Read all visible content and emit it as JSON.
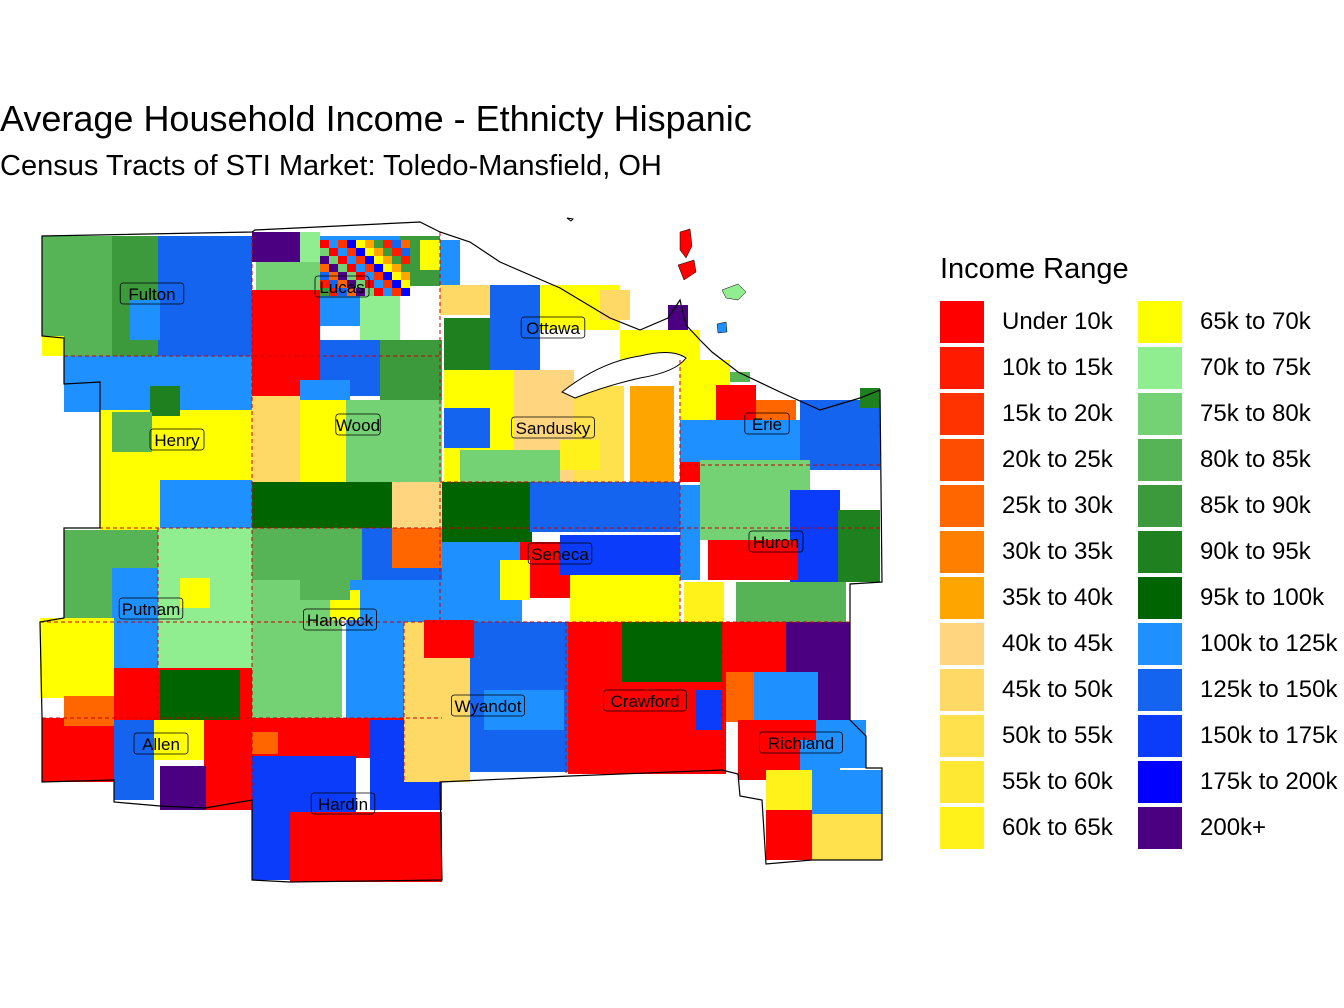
{
  "title": "Average Household Income - Ethnicty Hispanic",
  "subtitle": "Census Tracts of STI Market: Toledo-Mansfield, OH",
  "legend": {
    "title": "Income Range",
    "items": [
      {
        "label": "Under 10k",
        "color": "#FF0000"
      },
      {
        "label": "10k to 15k",
        "color": "#FF1A00"
      },
      {
        "label": "15k to 20k",
        "color": "#FF3300"
      },
      {
        "label": "20k to 25k",
        "color": "#FF4D00"
      },
      {
        "label": "25k to 30k",
        "color": "#FF6600"
      },
      {
        "label": "30k to 35k",
        "color": "#FF8000"
      },
      {
        "label": "35k to 40k",
        "color": "#FFA500"
      },
      {
        "label": "40k to 45k",
        "color": "#FFD580"
      },
      {
        "label": "45k to 50k",
        "color": "#FFD966"
      },
      {
        "label": "50k to 55k",
        "color": "#FFE14D"
      },
      {
        "label": "55k to 60k",
        "color": "#FFE833"
      },
      {
        "label": "60k to 65k",
        "color": "#FFF21A"
      },
      {
        "label": "65k to 70k",
        "color": "#FFFF00"
      },
      {
        "label": "70k to 75k",
        "color": "#90EE90"
      },
      {
        "label": "75k to 80k",
        "color": "#74D174"
      },
      {
        "label": "80k to 85k",
        "color": "#56B456"
      },
      {
        "label": "85k to 90k",
        "color": "#3C9A3C"
      },
      {
        "label": "90k to 95k",
        "color": "#1F801F"
      },
      {
        "label": "95k to 100k",
        "color": "#006400"
      },
      {
        "label": "100k to 125k",
        "color": "#1E90FF"
      },
      {
        "label": "125k to 150k",
        "color": "#1464F0"
      },
      {
        "label": "150k to 175k",
        "color": "#0A3CFA"
      },
      {
        "label": "175k to 200k",
        "color": "#0000FF"
      },
      {
        "label": "200k+",
        "color": "#4B0082"
      }
    ]
  },
  "counties": [
    {
      "name": "Fulton"
    },
    {
      "name": "Lucas"
    },
    {
      "name": "Ottawa"
    },
    {
      "name": "Henry"
    },
    {
      "name": "Wood"
    },
    {
      "name": "Sandusky"
    },
    {
      "name": "Erie"
    },
    {
      "name": "Seneca"
    },
    {
      "name": "Huron"
    },
    {
      "name": "Putnam"
    },
    {
      "name": "Hancock"
    },
    {
      "name": "Wyandot"
    },
    {
      "name": "Crawford"
    },
    {
      "name": "Allen"
    },
    {
      "name": "Richland"
    },
    {
      "name": "Hardin"
    }
  ]
}
